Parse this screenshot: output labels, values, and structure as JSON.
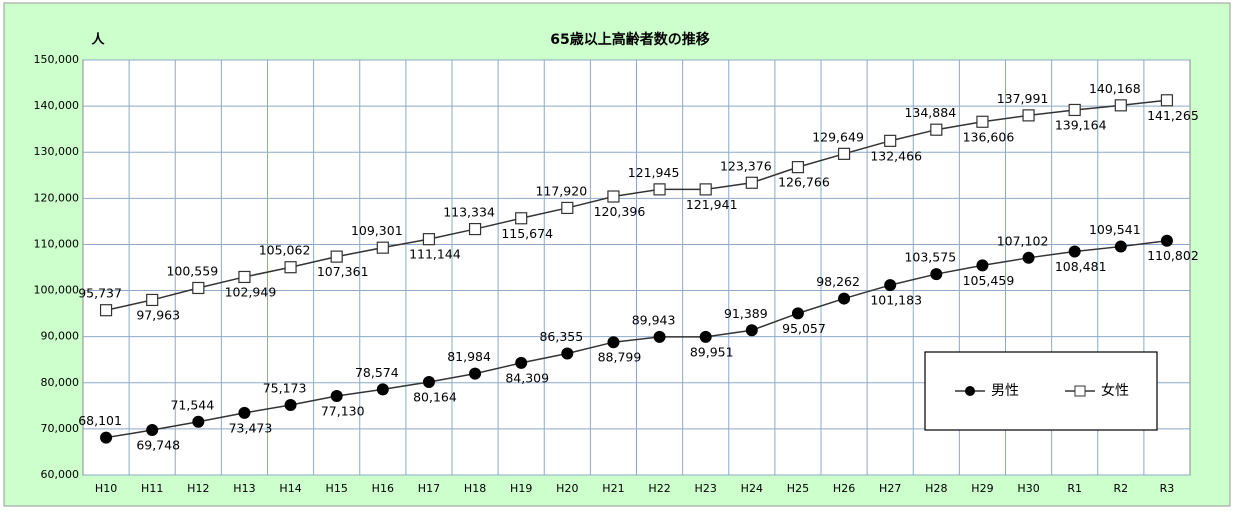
{
  "chart_data": {
    "type": "line",
    "title": "65歳以上高齢者数の推移",
    "y_label": "人",
    "categories": [
      "H10",
      "H11",
      "H12",
      "H13",
      "H14",
      "H15",
      "H16",
      "H17",
      "H18",
      "H19",
      "H20",
      "H21",
      "H22",
      "H23",
      "H24",
      "H25",
      "H26",
      "H27",
      "H28",
      "H29",
      "H30",
      "R1",
      "R2",
      "R3"
    ],
    "series": [
      {
        "name": "男性",
        "color": "#000000",
        "marker": "circle",
        "values": [
          68101,
          69748,
          71544,
          73473,
          75173,
          77130,
          78574,
          80164,
          81984,
          84309,
          86355,
          88799,
          89943,
          89951,
          91389,
          95057,
          98262,
          101183,
          103575,
          105459,
          107102,
          108481,
          109541,
          110802
        ],
        "value_labels": [
          "68,101",
          "69,748",
          "71,544",
          "73,473",
          "75,173",
          "77,130",
          "78,574",
          "80,164",
          "81,984",
          "84,309",
          "86,355",
          "88,799",
          "89,943",
          "89,951",
          "91,389",
          "95,057",
          "98,262",
          "101,183",
          "103,575",
          "105,459",
          "107,102",
          "108,481",
          "109,541",
          "110,802"
        ]
      },
      {
        "name": "女性",
        "color": "#ffffff",
        "marker": "square",
        "values": [
          95737,
          97963,
          100559,
          102949,
          105062,
          107361,
          109301,
          111144,
          113334,
          115674,
          117920,
          120396,
          121945,
          121941,
          123376,
          126766,
          129649,
          132466,
          134884,
          136606,
          137991,
          139164,
          140168,
          141265
        ],
        "value_labels": [
          "95,737",
          "97,963",
          "100,559",
          "102,949",
          "105,062",
          "107,361",
          "109,301",
          "111,144",
          "113,334",
          "115,674",
          "117,920",
          "120,396",
          "121,945",
          "121,941",
          "123,376",
          "126,766",
          "129,649",
          "132,466",
          "134,884",
          "136,606",
          "137,991",
          "139,164",
          "140,168",
          "141,265"
        ]
      }
    ],
    "ylim": [
      60000,
      150000
    ],
    "yticks": [
      {
        "value": 60000,
        "label": "60,000"
      },
      {
        "value": 70000,
        "label": "70,000"
      },
      {
        "value": 80000,
        "label": "80,000"
      },
      {
        "value": 90000,
        "label": "90,000"
      },
      {
        "value": 100000,
        "label": "100,000"
      },
      {
        "value": 110000,
        "label": "110,000"
      },
      {
        "value": 120000,
        "label": "120,000"
      },
      {
        "value": 130000,
        "label": "130,000"
      },
      {
        "value": 140000,
        "label": "140,000"
      },
      {
        "value": 150000,
        "label": "150,000"
      }
    ],
    "grid": true,
    "legend": "lower right"
  }
}
